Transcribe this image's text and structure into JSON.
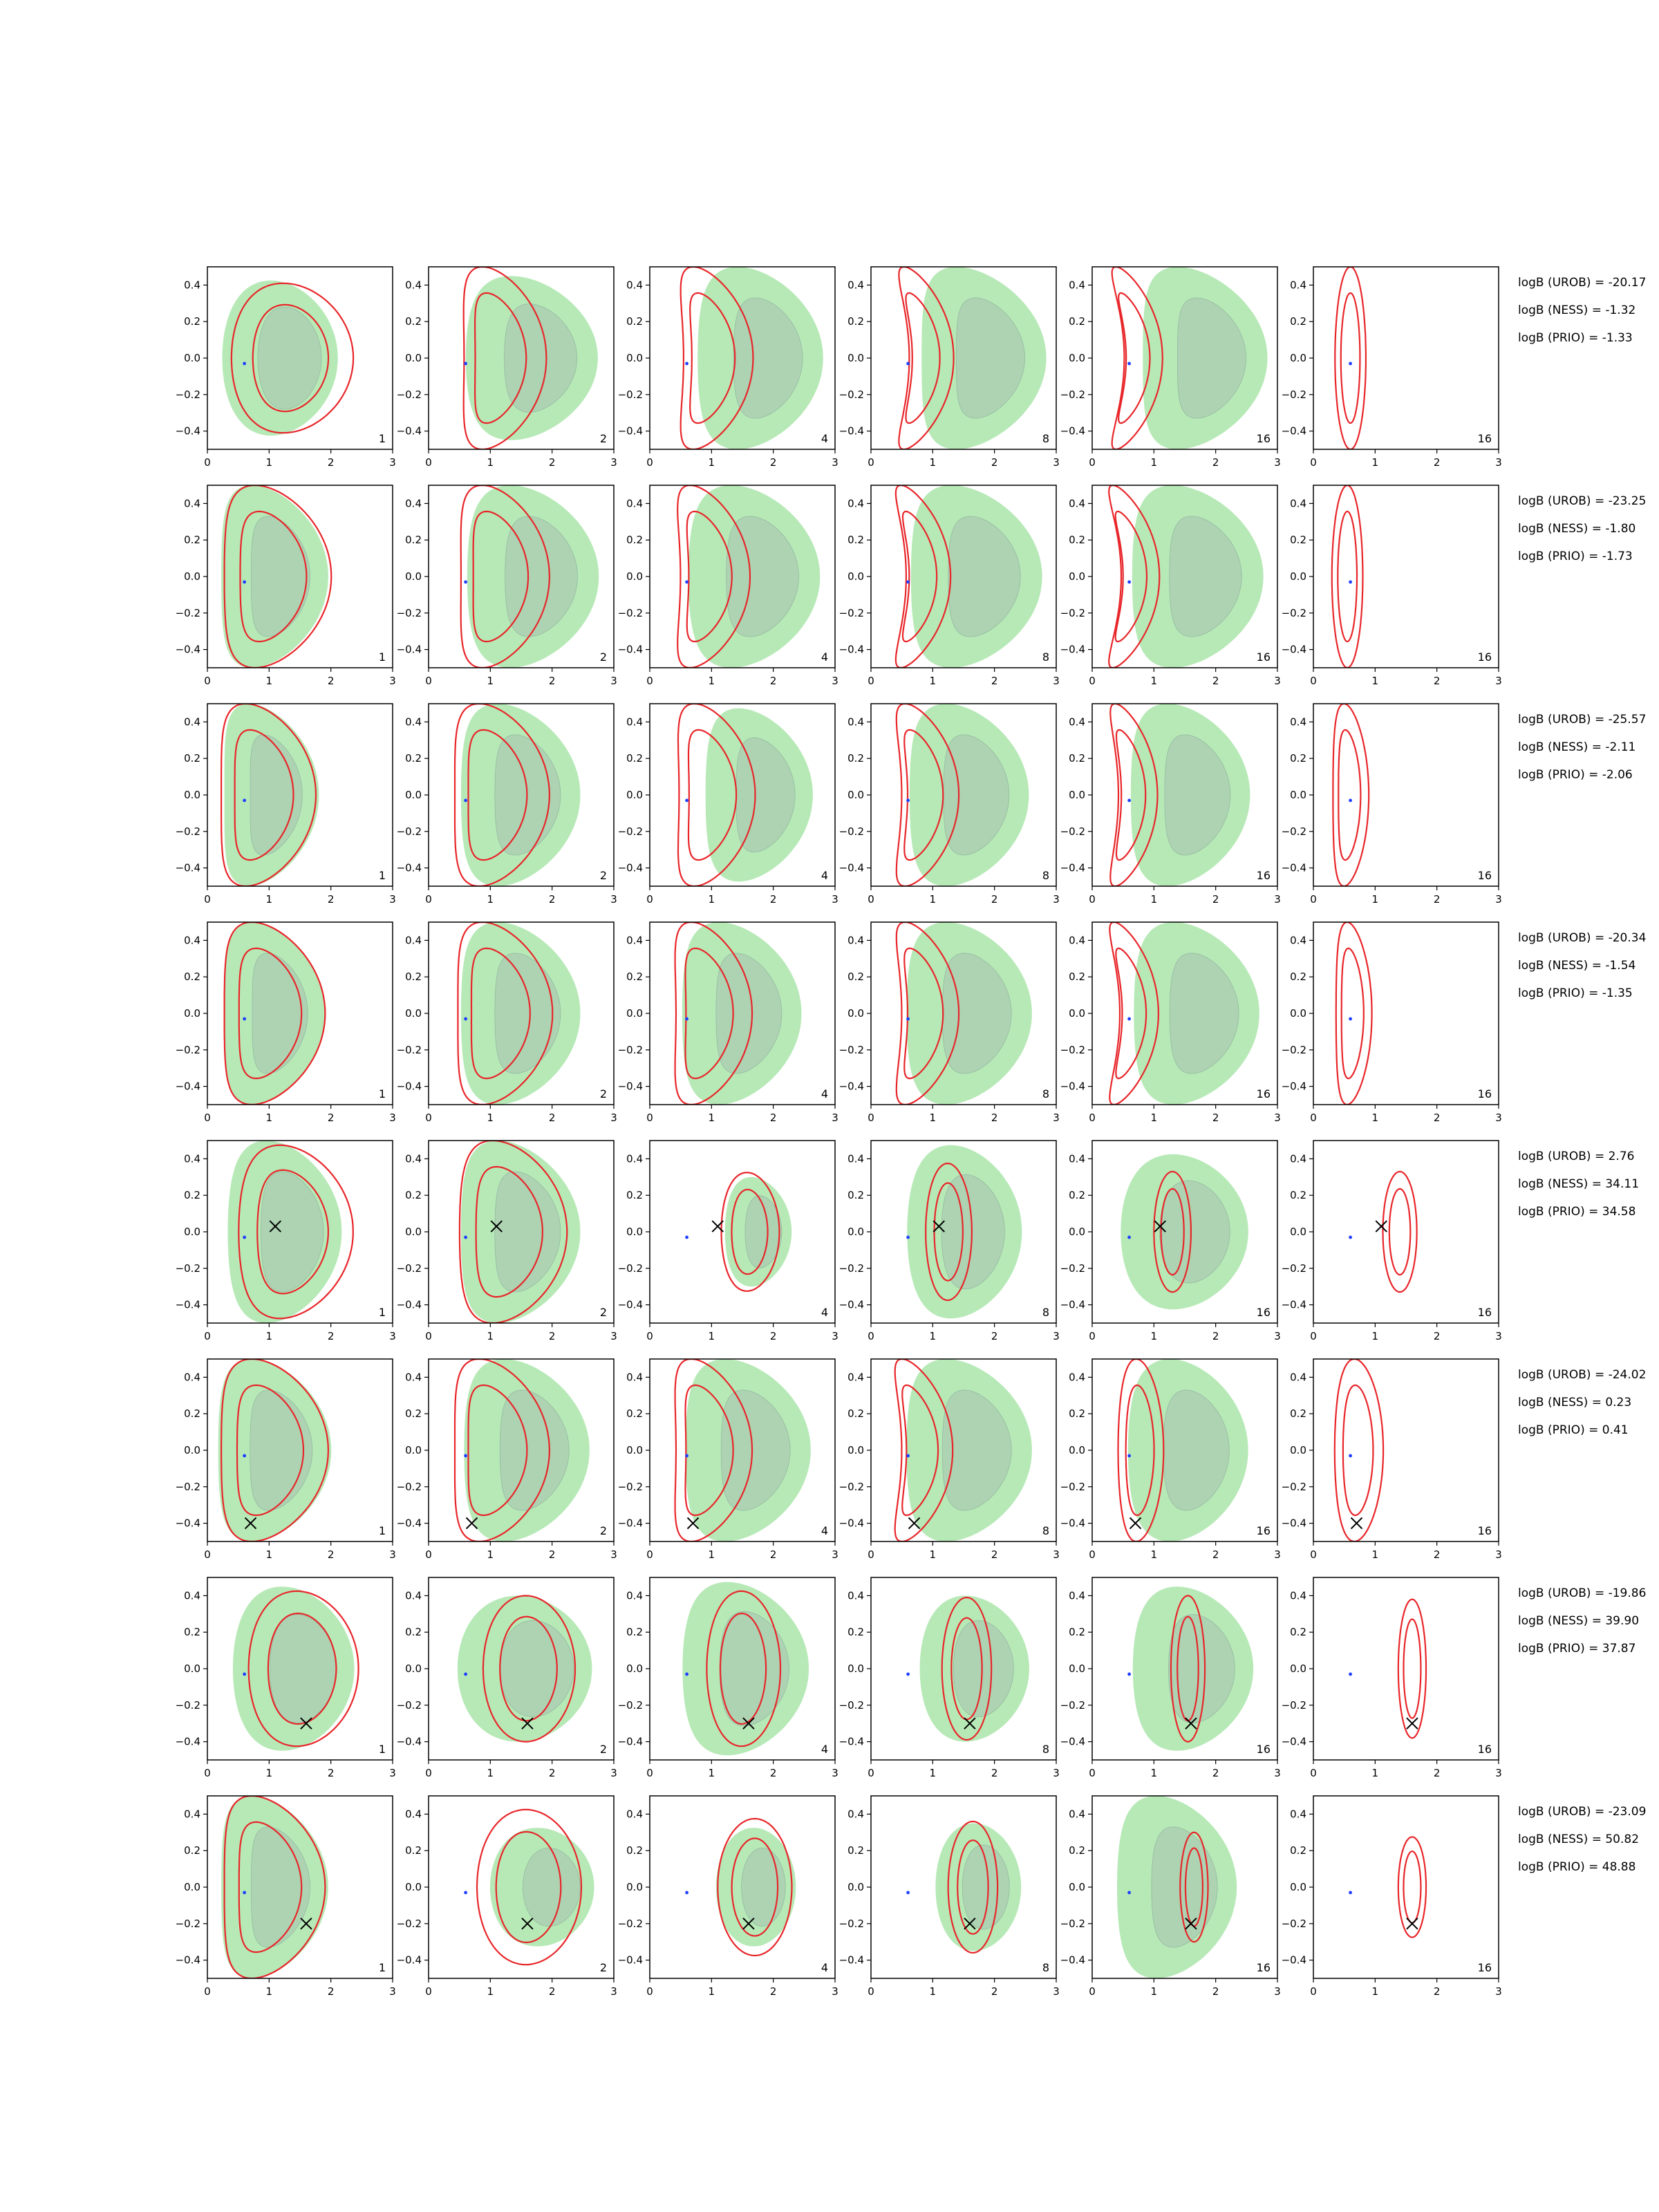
{
  "chart_data": {
    "type": "contour-grid",
    "rows": 8,
    "cols": 6,
    "xlim": [
      0,
      3
    ],
    "ylim": [
      -0.5,
      0.5
    ],
    "x_ticks": [
      "0",
      "1",
      "2",
      "3"
    ],
    "y_ticks": [
      "0.4",
      "0.2",
      "0.0",
      "−0.2",
      "−0.4"
    ],
    "column_labels": [
      "1",
      "2",
      "4",
      "8",
      "16",
      "16"
    ],
    "reference_point": [
      0.6,
      -0.03
    ],
    "colors": {
      "green_fill": "#b7e9b7",
      "inner_fill": "#a8c9b0",
      "red_line": "#e8262a",
      "blue_point": "#1f3fff",
      "marker": "#000000"
    },
    "row_data": [
      {
        "marker": null,
        "logB": [
          "logB (UROB) = -20.17",
          "logB (NESS) = -1.32",
          "logB (PRIO) = -1.33"
        ],
        "green": [
          {
            "cx": 1.1,
            "cy": 0.0,
            "w": 1.9,
            "h": 0.85,
            "b": 0.4
          },
          {
            "cx": 1.5,
            "cy": 0.0,
            "w": 2.2,
            "h": 0.9,
            "b": 0.9
          },
          {
            "cx": 1.6,
            "cy": 0.0,
            "w": 2.1,
            "h": 1.0,
            "b": 1.0
          },
          {
            "cx": 1.6,
            "cy": 0.0,
            "w": 2.1,
            "h": 1.0,
            "b": 1.2
          },
          {
            "cx": 1.6,
            "cy": 0.0,
            "w": 2.1,
            "h": 1.0,
            "b": 1.2
          },
          null
        ],
        "red": [
          {
            "cx": 1.3,
            "cy": 0.0,
            "w": 2.0,
            "h": 0.82,
            "b": 0.4
          },
          {
            "cx": 1.05,
            "cy": 0.0,
            "w": 1.4,
            "h": 1.0,
            "b": 1.0
          },
          {
            "cx": 0.9,
            "cy": 0.0,
            "w": 1.2,
            "h": 1.0,
            "b": 1.1
          },
          {
            "cx": 0.75,
            "cy": 0.0,
            "w": 0.8,
            "h": 1.0,
            "b": 1.2
          },
          {
            "cx": 0.6,
            "cy": 0.0,
            "w": 0.7,
            "h": 1.0,
            "b": 1.2
          },
          {
            "cx": 0.6,
            "cy": 0.0,
            "w": 0.5,
            "h": 1.0,
            "b": 0.0
          }
        ]
      },
      {
        "marker": null,
        "logB": [
          "logB (UROB) = -23.25",
          "logB (NESS) = -1.80",
          "logB (PRIO) = -1.73"
        ],
        "green": [
          {
            "cx": 0.9,
            "cy": 0.0,
            "w": 1.8,
            "h": 1.0,
            "b": 1.0
          },
          {
            "cx": 1.5,
            "cy": 0.0,
            "w": 2.2,
            "h": 1.0,
            "b": 1.0
          },
          {
            "cx": 1.5,
            "cy": 0.0,
            "w": 2.2,
            "h": 1.0,
            "b": 1.0
          },
          {
            "cx": 1.5,
            "cy": 0.0,
            "w": 2.2,
            "h": 1.0,
            "b": 1.1
          },
          {
            "cx": 1.5,
            "cy": 0.0,
            "w": 2.2,
            "h": 1.0,
            "b": 1.1
          },
          null
        ],
        "red": [
          {
            "cx": 0.95,
            "cy": 0.0,
            "w": 1.8,
            "h": 1.0,
            "b": 1.0
          },
          {
            "cx": 1.05,
            "cy": 0.0,
            "w": 1.5,
            "h": 1.0,
            "b": 1.0
          },
          {
            "cx": 0.85,
            "cy": 0.0,
            "w": 1.2,
            "h": 1.0,
            "b": 1.1
          },
          {
            "cx": 0.7,
            "cy": 0.0,
            "w": 0.8,
            "h": 1.0,
            "b": 1.2
          },
          {
            "cx": 0.55,
            "cy": 0.0,
            "w": 0.7,
            "h": 1.0,
            "b": 1.2
          },
          {
            "cx": 0.55,
            "cy": 0.0,
            "w": 0.5,
            "h": 1.0,
            "b": 0.0
          }
        ]
      },
      {
        "marker": null,
        "logB": [
          "logB (UROB) = -25.57",
          "logB (NESS) = -2.11",
          "logB (PRIO) = -2.06"
        ],
        "green": [
          {
            "cx": 0.85,
            "cy": 0.0,
            "w": 1.6,
            "h": 1.0,
            "b": 1.0
          },
          {
            "cx": 1.3,
            "cy": 0.0,
            "w": 2.0,
            "h": 1.0,
            "b": 1.0
          },
          {
            "cx": 1.6,
            "cy": 0.0,
            "w": 1.8,
            "h": 0.95,
            "b": 0.9
          },
          {
            "cx": 1.4,
            "cy": 0.0,
            "w": 2.0,
            "h": 1.0,
            "b": 1.0
          },
          {
            "cx": 1.4,
            "cy": 0.0,
            "w": 2.0,
            "h": 1.0,
            "b": 1.0
          },
          null
        ],
        "red": [
          {
            "cx": 0.8,
            "cy": 0.0,
            "w": 1.6,
            "h": 1.0,
            "b": 1.0
          },
          {
            "cx": 1.0,
            "cy": 0.0,
            "w": 1.6,
            "h": 1.0,
            "b": 1.0
          },
          {
            "cx": 0.9,
            "cy": 0.0,
            "w": 1.3,
            "h": 1.0,
            "b": 1.0
          },
          {
            "cx": 0.75,
            "cy": 0.0,
            "w": 1.0,
            "h": 1.0,
            "b": 1.1
          },
          {
            "cx": 0.55,
            "cy": 0.0,
            "w": 0.7,
            "h": 1.0,
            "b": 1.0
          },
          {
            "cx": 0.55,
            "cy": 0.0,
            "w": 0.6,
            "h": 1.0,
            "b": 0.3
          }
        ]
      },
      {
        "marker": null,
        "logB": [
          "logB (UROB) = -20.34",
          "logB (NESS) = -1.54",
          "logB (PRIO) = -1.35"
        ],
        "green": [
          {
            "cx": 0.9,
            "cy": 0.0,
            "w": 1.7,
            "h": 1.0,
            "b": 1.0
          },
          {
            "cx": 1.3,
            "cy": 0.0,
            "w": 2.0,
            "h": 1.0,
            "b": 1.0
          },
          {
            "cx": 1.3,
            "cy": 0.0,
            "w": 2.0,
            "h": 1.0,
            "b": 1.0
          },
          {
            "cx": 1.4,
            "cy": 0.0,
            "w": 2.1,
            "h": 1.0,
            "b": 1.0
          },
          {
            "cx": 1.5,
            "cy": 0.0,
            "w": 2.1,
            "h": 1.0,
            "b": 1.0
          },
          null
        ],
        "red": [
          {
            "cx": 0.9,
            "cy": 0.0,
            "w": 1.7,
            "h": 1.0,
            "b": 1.0
          },
          {
            "cx": 1.05,
            "cy": 0.0,
            "w": 1.6,
            "h": 1.0,
            "b": 1.0
          },
          {
            "cx": 0.85,
            "cy": 0.0,
            "w": 1.3,
            "h": 1.0,
            "b": 1.0
          },
          {
            "cx": 0.75,
            "cy": 0.0,
            "w": 1.0,
            "h": 1.0,
            "b": 1.1
          },
          {
            "cx": 0.55,
            "cy": 0.0,
            "w": 0.7,
            "h": 1.0,
            "b": 1.1
          },
          {
            "cx": 0.6,
            "cy": 0.0,
            "w": 0.6,
            "h": 1.0,
            "b": 0.3
          }
        ]
      },
      {
        "marker": [
          1.1,
          0.03
        ],
        "logB": [
          "logB (UROB) = 2.76",
          "logB (NESS) = 34.11",
          "logB (PRIO) = 34.58"
        ],
        "green": [
          {
            "cx": 1.1,
            "cy": 0.0,
            "w": 1.9,
            "h": 1.0,
            "b": 0.8
          },
          {
            "cx": 1.3,
            "cy": 0.0,
            "w": 2.0,
            "h": 1.0,
            "b": 1.0
          },
          {
            "cx": 1.7,
            "cy": 0.0,
            "w": 1.1,
            "h": 0.6,
            "b": 0.3
          },
          {
            "cx": 1.4,
            "cy": 0.0,
            "w": 1.9,
            "h": 0.95,
            "b": 0.6
          },
          {
            "cx": 1.4,
            "cy": 0.0,
            "w": 2.1,
            "h": 0.85,
            "b": 0.5
          },
          null
        ],
        "red": [
          {
            "cx": 1.3,
            "cy": 0.0,
            "w": 1.9,
            "h": 0.95,
            "b": 0.7
          },
          {
            "cx": 1.2,
            "cy": 0.0,
            "w": 1.8,
            "h": 1.0,
            "b": 0.9
          },
          {
            "cx": 1.6,
            "cy": 0.0,
            "w": 0.95,
            "h": 0.65,
            "b": 0.15
          },
          {
            "cx": 1.25,
            "cy": 0.0,
            "w": 0.75,
            "h": 0.75,
            "b": 0.05
          },
          {
            "cx": 1.3,
            "cy": 0.0,
            "w": 0.6,
            "h": 0.66,
            "b": 0.0
          },
          {
            "cx": 1.4,
            "cy": 0.0,
            "w": 0.55,
            "h": 0.66,
            "b": 0.0
          }
        ]
      },
      {
        "marker": [
          0.7,
          -0.4
        ],
        "logB": [
          "logB (UROB) = -24.02",
          "logB (NESS) = 0.23",
          "logB (PRIO) = 0.41"
        ],
        "green": [
          {
            "cx": 0.9,
            "cy": 0.0,
            "w": 1.9,
            "h": 1.0,
            "b": 1.0
          },
          {
            "cx": 1.4,
            "cy": 0.0,
            "w": 2.1,
            "h": 1.0,
            "b": 1.0
          },
          {
            "cx": 1.4,
            "cy": 0.0,
            "w": 2.1,
            "h": 1.0,
            "b": 1.0
          },
          {
            "cx": 1.4,
            "cy": 0.0,
            "w": 2.1,
            "h": 1.0,
            "b": 1.0
          },
          {
            "cx": 1.4,
            "cy": 0.0,
            "w": 2.0,
            "h": 1.0,
            "b": 0.8
          },
          null
        ],
        "red": [
          {
            "cx": 0.9,
            "cy": 0.0,
            "w": 1.8,
            "h": 1.0,
            "b": 1.0
          },
          {
            "cx": 1.0,
            "cy": 0.0,
            "w": 1.6,
            "h": 1.0,
            "b": 1.0
          },
          {
            "cx": 0.85,
            "cy": 0.0,
            "w": 1.3,
            "h": 1.0,
            "b": 1.0
          },
          {
            "cx": 0.7,
            "cy": 0.0,
            "w": 0.9,
            "h": 1.0,
            "b": 1.1
          },
          {
            "cx": 0.75,
            "cy": 0.0,
            "w": 0.75,
            "h": 1.0,
            "b": 0.2
          },
          {
            "cx": 0.7,
            "cy": 0.0,
            "w": 0.8,
            "h": 1.0,
            "b": 0.2
          }
        ]
      },
      {
        "marker": [
          1.6,
          -0.3
        ],
        "logB": [
          "logB (UROB) = -19.86",
          "logB (NESS) = 39.90",
          "logB (PRIO) = 37.87"
        ],
        "green": [
          {
            "cx": 1.3,
            "cy": 0.0,
            "w": 2.0,
            "h": 0.9,
            "b": 0.5
          },
          {
            "cx": 1.5,
            "cy": 0.0,
            "w": 2.2,
            "h": 0.8,
            "b": 0.3
          },
          {
            "cx": 1.4,
            "cy": 0.0,
            "w": 2.1,
            "h": 0.95,
            "b": 0.8
          },
          {
            "cx": 1.6,
            "cy": 0.0,
            "w": 1.8,
            "h": 0.8,
            "b": 0.4
          },
          {
            "cx": 1.5,
            "cy": 0.0,
            "w": 2.0,
            "h": 0.9,
            "b": 0.7
          },
          null
        ],
        "red": [
          {
            "cx": 1.5,
            "cy": 0.0,
            "w": 1.8,
            "h": 0.85,
            "b": 0.3
          },
          {
            "cx": 1.6,
            "cy": 0.0,
            "w": 1.5,
            "h": 0.8,
            "b": 0.15
          },
          {
            "cx": 1.5,
            "cy": 0.0,
            "w": 1.2,
            "h": 0.85,
            "b": 0.1
          },
          {
            "cx": 1.55,
            "cy": 0.0,
            "w": 0.8,
            "h": 0.78,
            "b": 0.0
          },
          {
            "cx": 1.55,
            "cy": 0.0,
            "w": 0.55,
            "h": 0.8,
            "b": 0.0
          },
          {
            "cx": 1.6,
            "cy": 0.0,
            "w": 0.45,
            "h": 0.76,
            "b": 0.0
          }
        ]
      },
      {
        "marker": [
          1.6,
          -0.2
        ],
        "logB": [
          "logB (UROB) = -23.09",
          "logB (NESS) = 50.82",
          "logB (PRIO) = 48.88"
        ],
        "green": [
          {
            "cx": 0.9,
            "cy": 0.0,
            "w": 1.8,
            "h": 1.0,
            "b": 1.0
          },
          {
            "cx": 1.8,
            "cy": 0.0,
            "w": 1.7,
            "h": 0.65,
            "b": 0.2
          },
          {
            "cx": 1.7,
            "cy": 0.0,
            "w": 1.3,
            "h": 0.65,
            "b": 0.1
          },
          {
            "cx": 1.7,
            "cy": 0.0,
            "w": 1.4,
            "h": 0.7,
            "b": 0.2
          },
          {
            "cx": 1.2,
            "cy": 0.0,
            "w": 2.0,
            "h": 1.0,
            "b": 0.9
          },
          null
        ],
        "red": [
          {
            "cx": 0.9,
            "cy": 0.0,
            "w": 1.7,
            "h": 1.0,
            "b": 1.0
          },
          {
            "cx": 1.6,
            "cy": 0.0,
            "w": 1.7,
            "h": 0.85,
            "b": 0.15
          },
          {
            "cx": 1.7,
            "cy": 0.0,
            "w": 1.2,
            "h": 0.75,
            "b": 0.0
          },
          {
            "cx": 1.65,
            "cy": 0.0,
            "w": 0.8,
            "h": 0.72,
            "b": 0.0
          },
          {
            "cx": 1.65,
            "cy": 0.0,
            "w": 0.45,
            "h": 0.6,
            "b": 0.0
          },
          {
            "cx": 1.6,
            "cy": 0.0,
            "w": 0.45,
            "h": 0.55,
            "b": 0.0
          }
        ]
      }
    ]
  }
}
